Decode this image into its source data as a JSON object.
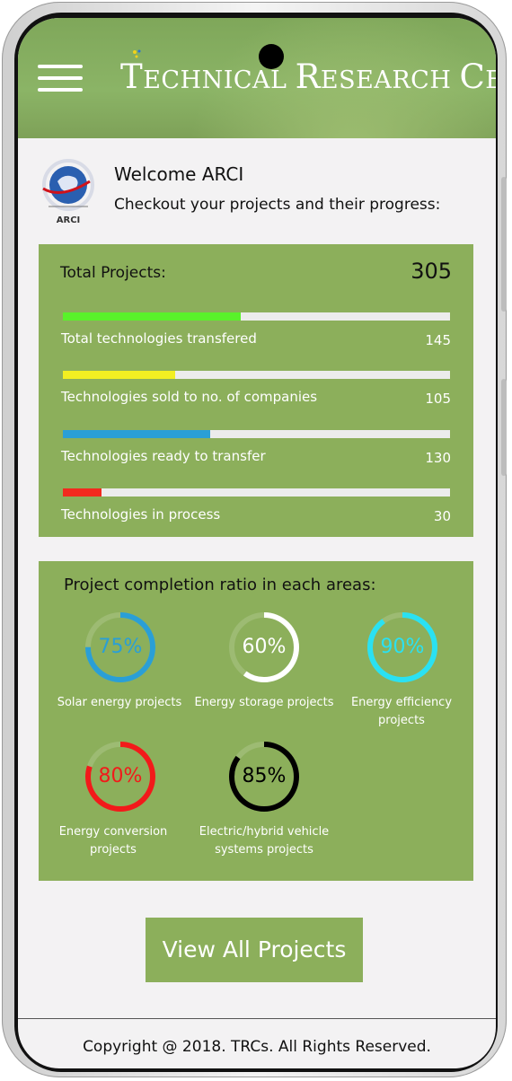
{
  "header": {
    "brand_first": "T",
    "brand_rest1": "echnical ",
    "brand_second": "R",
    "brand_rest2": "esearch ",
    "brand_third": "C",
    "brand_rest3": "entre",
    "menu_icon": "hamburger-icon"
  },
  "welcome": {
    "logo_text": "ARCI",
    "title": "Welcome ARCI",
    "subtitle": "Checkout your projects and their progress:"
  },
  "summary": {
    "total_label": "Total Projects:",
    "total_value": "305",
    "stats": [
      {
        "label": "Total technologies transfered",
        "value": "145",
        "fraction": 0.46,
        "color": "#59f22a"
      },
      {
        "label": "Technologies sold to no. of companies",
        "value": "105",
        "fraction": 0.29,
        "color": "#f2ef22"
      },
      {
        "label": "Technologies ready to transfer",
        "value": "130",
        "fraction": 0.38,
        "color": "#2a9fd6"
      },
      {
        "label": "Technologies in process",
        "value": "30",
        "fraction": 0.1,
        "color": "#f22a1e"
      }
    ]
  },
  "areas": {
    "title": "Project completion ratio in each areas:",
    "items": [
      {
        "pct": "75%",
        "value": 0.75,
        "color": "#2a9fd6",
        "caption": "Solar energy projects"
      },
      {
        "pct": "60%",
        "value": 0.6,
        "color": "#ffffff",
        "caption": "Energy storage projects"
      },
      {
        "pct": "90%",
        "value": 0.9,
        "color": "#2ae1f2",
        "caption": "Energy efficiency projects"
      },
      {
        "pct": "80%",
        "value": 0.8,
        "color": "#f21a1a",
        "caption": "Energy conversion projects"
      },
      {
        "pct": "85%",
        "value": 0.85,
        "color": "#000000",
        "caption": "Electric/hybrid vehicle systems projects"
      }
    ]
  },
  "actions": {
    "view_all": "View All Projects"
  },
  "footer": {
    "copyright": "Copyright @ 2018. TRCs. All Rights Reserved."
  }
}
